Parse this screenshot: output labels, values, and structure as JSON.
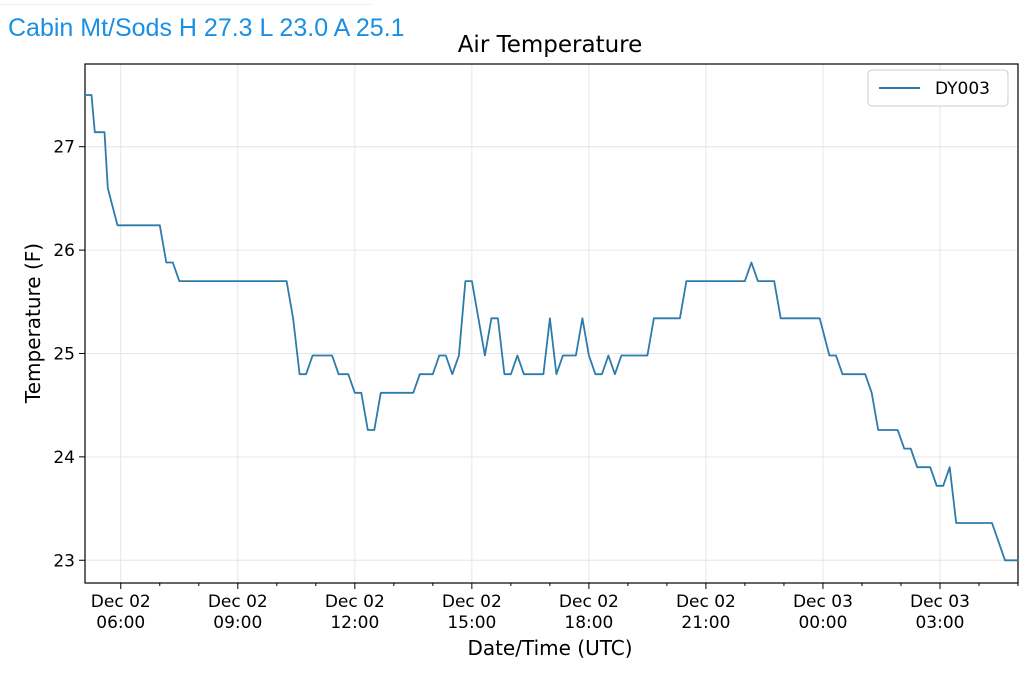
{
  "header": {
    "station_summary": "Cabin Mt/Sods H 27.3 L 23.0 A 25.1"
  },
  "colors": {
    "header_text": "#1a8fe3",
    "series_line": "#2c7bab",
    "grid": "#e6e6e6"
  },
  "chart_data": {
    "type": "line",
    "title": "Air Temperature",
    "xlabel": "Date/Time (UTC)",
    "ylabel": "Temperature (F)",
    "x_range": [
      "2024-12-02T05:05",
      "2024-12-03T05:00"
    ],
    "ylim": [
      22.78,
      27.8
    ],
    "yticks": [
      23,
      24,
      25,
      26,
      27
    ],
    "grid": true,
    "legend": "top-right",
    "xticks": [
      {
        "t": "2024-12-02T06:00",
        "date": "Dec 02",
        "time": "06:00"
      },
      {
        "t": "2024-12-02T09:00",
        "date": "Dec 02",
        "time": "09:00"
      },
      {
        "t": "2024-12-02T12:00",
        "date": "Dec 02",
        "time": "12:00"
      },
      {
        "t": "2024-12-02T15:00",
        "date": "Dec 02",
        "time": "15:00"
      },
      {
        "t": "2024-12-02T18:00",
        "date": "Dec 02",
        "time": "18:00"
      },
      {
        "t": "2024-12-02T21:00",
        "date": "Dec 02",
        "time": "21:00"
      },
      {
        "t": "2024-12-03T00:00",
        "date": "Dec 03",
        "time": "00:00"
      },
      {
        "t": "2024-12-03T03:00",
        "date": "Dec 03",
        "time": "03:00"
      }
    ],
    "series": [
      {
        "name": "DY003",
        "points": [
          [
            "2024-12-02T05:05",
            27.5
          ],
          [
            "2024-12-02T05:15",
            27.5
          ],
          [
            "2024-12-02T05:20",
            27.14
          ],
          [
            "2024-12-02T05:35",
            27.14
          ],
          [
            "2024-12-02T05:40",
            26.6
          ],
          [
            "2024-12-02T05:55",
            26.24
          ],
          [
            "2024-12-02T07:00",
            26.24
          ],
          [
            "2024-12-02T07:10",
            25.88
          ],
          [
            "2024-12-02T07:20",
            25.88
          ],
          [
            "2024-12-02T07:30",
            25.7
          ],
          [
            "2024-12-02T10:15",
            25.7
          ],
          [
            "2024-12-02T10:25",
            25.34
          ],
          [
            "2024-12-02T10:35",
            24.8
          ],
          [
            "2024-12-02T10:45",
            24.8
          ],
          [
            "2024-12-02T10:55",
            24.98
          ],
          [
            "2024-12-02T11:25",
            24.98
          ],
          [
            "2024-12-02T11:35",
            24.8
          ],
          [
            "2024-12-02T11:50",
            24.8
          ],
          [
            "2024-12-02T12:00",
            24.62
          ],
          [
            "2024-12-02T12:10",
            24.62
          ],
          [
            "2024-12-02T12:20",
            24.26
          ],
          [
            "2024-12-02T12:30",
            24.26
          ],
          [
            "2024-12-02T12:40",
            24.62
          ],
          [
            "2024-12-02T13:30",
            24.62
          ],
          [
            "2024-12-02T13:40",
            24.8
          ],
          [
            "2024-12-02T14:00",
            24.8
          ],
          [
            "2024-12-02T14:10",
            24.98
          ],
          [
            "2024-12-02T14:20",
            24.98
          ],
          [
            "2024-12-02T14:30",
            24.8
          ],
          [
            "2024-12-02T14:40",
            24.98
          ],
          [
            "2024-12-02T14:50",
            25.7
          ],
          [
            "2024-12-02T15:00",
            25.7
          ],
          [
            "2024-12-02T15:10",
            25.34
          ],
          [
            "2024-12-02T15:20",
            24.98
          ],
          [
            "2024-12-02T15:30",
            25.34
          ],
          [
            "2024-12-02T15:40",
            25.34
          ],
          [
            "2024-12-02T15:50",
            24.8
          ],
          [
            "2024-12-02T16:00",
            24.8
          ],
          [
            "2024-12-02T16:10",
            24.98
          ],
          [
            "2024-12-02T16:20",
            24.8
          ],
          [
            "2024-12-02T16:50",
            24.8
          ],
          [
            "2024-12-02T17:00",
            25.34
          ],
          [
            "2024-12-02T17:10",
            24.8
          ],
          [
            "2024-12-02T17:20",
            24.98
          ],
          [
            "2024-12-02T17:40",
            24.98
          ],
          [
            "2024-12-02T17:50",
            25.34
          ],
          [
            "2024-12-02T18:00",
            24.98
          ],
          [
            "2024-12-02T18:10",
            24.8
          ],
          [
            "2024-12-02T18:20",
            24.8
          ],
          [
            "2024-12-02T18:30",
            24.98
          ],
          [
            "2024-12-02T18:40",
            24.8
          ],
          [
            "2024-12-02T18:50",
            24.98
          ],
          [
            "2024-12-02T19:30",
            24.98
          ],
          [
            "2024-12-02T19:40",
            25.34
          ],
          [
            "2024-12-02T20:20",
            25.34
          ],
          [
            "2024-12-02T20:30",
            25.7
          ],
          [
            "2024-12-02T22:00",
            25.7
          ],
          [
            "2024-12-02T22:10",
            25.88
          ],
          [
            "2024-12-02T22:20",
            25.7
          ],
          [
            "2024-12-02T22:45",
            25.7
          ],
          [
            "2024-12-02T22:55",
            25.34
          ],
          [
            "2024-12-02T23:55",
            25.34
          ],
          [
            "2024-12-03T00:10",
            24.98
          ],
          [
            "2024-12-03T00:20",
            24.98
          ],
          [
            "2024-12-03T00:30",
            24.8
          ],
          [
            "2024-12-03T01:05",
            24.8
          ],
          [
            "2024-12-03T01:15",
            24.62
          ],
          [
            "2024-12-03T01:25",
            24.26
          ],
          [
            "2024-12-03T01:55",
            24.26
          ],
          [
            "2024-12-03T02:05",
            24.08
          ],
          [
            "2024-12-03T02:15",
            24.08
          ],
          [
            "2024-12-03T02:25",
            23.9
          ],
          [
            "2024-12-03T02:45",
            23.9
          ],
          [
            "2024-12-03T02:55",
            23.72
          ],
          [
            "2024-12-03T03:05",
            23.72
          ],
          [
            "2024-12-03T03:15",
            23.9
          ],
          [
            "2024-12-03T03:25",
            23.36
          ],
          [
            "2024-12-03T04:20",
            23.36
          ],
          [
            "2024-12-03T04:30",
            23.18
          ],
          [
            "2024-12-03T04:40",
            23.0
          ],
          [
            "2024-12-03T05:00",
            23.0
          ]
        ]
      }
    ]
  }
}
